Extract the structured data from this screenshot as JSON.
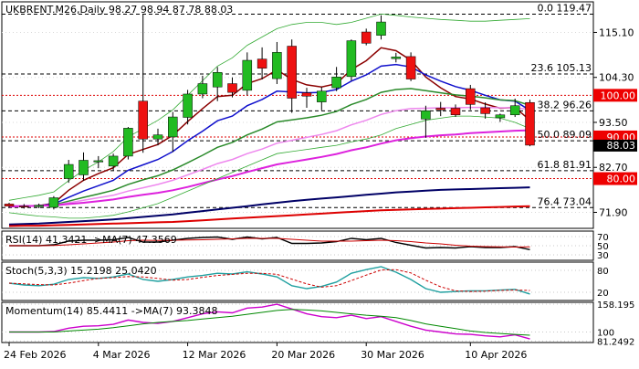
{
  "header": {
    "main": "UKBRENT.M26,Daily  98.27 98.94 87.78 88.03",
    "rsi": "RSI(14) 41.3421  ->MA(7) 47.3569",
    "stoch": "Stoch(5,3,3) 15.2198 25.0420",
    "momentum": "Momentum(14) 85.4411  ->MA(7) 93.3848"
  },
  "colors": {
    "bull": "#22bb22",
    "bear": "#ee1111",
    "ema5": "#8b0000",
    "ema10": "#1010cc",
    "ema20": "#2a8a2a",
    "ema30": "#ee88ee",
    "ema55": "#dd22dd",
    "ema100": "#000066",
    "ema200": "#dd0000",
    "bollinger": "#33aa33",
    "resistance_line": "#dd0000",
    "fib_line": "#000000",
    "price_tag": "#ee0000",
    "current_tag": "#000000"
  },
  "chart_data": [
    {
      "type": "candlestick",
      "symbol": "UKBRENT.M26",
      "timeframe": "Daily",
      "ohlc_current": {
        "open": 98.27,
        "high": 98.94,
        "low": 87.78,
        "close": 88.03
      },
      "x_tick_labels": [
        "24 Feb 2026",
        "4 Mar 2026",
        "12 Mar 2026",
        "20 Mar 2026",
        "30 Mar 2026",
        "10 Apr 2026"
      ],
      "x_tick_index": [
        0,
        6,
        12,
        18,
        24,
        31
      ],
      "ylim": [
        68.5,
        122
      ],
      "y_tick_labels": [
        "115.10",
        "104.30",
        "93.50",
        "82.70",
        "71.90"
      ],
      "y_ticks": [
        115.1,
        104.3,
        93.5,
        82.7,
        71.9
      ],
      "candles": [
        {
          "o": 73.9,
          "h": 74.2,
          "l": 73.0,
          "c": 73.4
        },
        {
          "o": 73.4,
          "h": 73.9,
          "l": 72.8,
          "c": 73.3
        },
        {
          "o": 73.3,
          "h": 74.0,
          "l": 72.9,
          "c": 73.6
        },
        {
          "o": 73.1,
          "h": 75.8,
          "l": 72.6,
          "c": 75.4
        },
        {
          "o": 80.0,
          "h": 84.5,
          "l": 79.0,
          "c": 83.4
        },
        {
          "o": 80.9,
          "h": 86.3,
          "l": 79.5,
          "c": 84.4
        },
        {
          "o": 84.0,
          "h": 85.4,
          "l": 82.5,
          "c": 84.3
        },
        {
          "o": 83.0,
          "h": 86.0,
          "l": 82.0,
          "c": 85.4
        },
        {
          "o": 85.4,
          "h": 92.4,
          "l": 84.6,
          "c": 92.1
        },
        {
          "o": 98.6,
          "h": 119.5,
          "l": 86.2,
          "c": 89.5
        },
        {
          "o": 89.5,
          "h": 92.0,
          "l": 88.0,
          "c": 90.5
        },
        {
          "o": 90.0,
          "h": 96.0,
          "l": 86.4,
          "c": 94.8
        },
        {
          "o": 94.7,
          "h": 101.3,
          "l": 93.0,
          "c": 100.3
        },
        {
          "o": 100.3,
          "h": 104.7,
          "l": 99.3,
          "c": 102.8
        },
        {
          "o": 102.0,
          "h": 106.8,
          "l": 98.6,
          "c": 105.5
        },
        {
          "o": 102.8,
          "h": 104.3,
          "l": 99.5,
          "c": 100.7
        },
        {
          "o": 101.2,
          "h": 110.3,
          "l": 100.0,
          "c": 108.4
        },
        {
          "o": 108.7,
          "h": 111.5,
          "l": 103.8,
          "c": 106.5
        },
        {
          "o": 104.0,
          "h": 112.8,
          "l": 102.7,
          "c": 110.3
        },
        {
          "o": 111.8,
          "h": 113.4,
          "l": 95.8,
          "c": 99.3
        },
        {
          "o": 100.6,
          "h": 101.8,
          "l": 97.0,
          "c": 99.8
        },
        {
          "o": 98.4,
          "h": 102.0,
          "l": 96.4,
          "c": 101.0
        },
        {
          "o": 101.8,
          "h": 106.8,
          "l": 101.0,
          "c": 104.4
        },
        {
          "o": 104.5,
          "h": 113.4,
          "l": 103.5,
          "c": 113.1
        },
        {
          "o": 115.2,
          "h": 116.0,
          "l": 112.0,
          "c": 112.5
        },
        {
          "o": 114.4,
          "h": 119.2,
          "l": 113.4,
          "c": 117.6
        },
        {
          "o": 108.8,
          "h": 110.2,
          "l": 107.9,
          "c": 109.2
        },
        {
          "o": 109.3,
          "h": 110.3,
          "l": 103.4,
          "c": 103.9
        },
        {
          "o": 94.3,
          "h": 97.5,
          "l": 89.8,
          "c": 96.3
        },
        {
          "o": 96.9,
          "h": 98.4,
          "l": 95.0,
          "c": 96.5
        },
        {
          "o": 96.9,
          "h": 97.8,
          "l": 94.8,
          "c": 95.3
        },
        {
          "o": 101.6,
          "h": 102.5,
          "l": 96.5,
          "c": 97.8
        },
        {
          "o": 97.0,
          "h": 98.3,
          "l": 94.4,
          "c": 95.6
        },
        {
          "o": 94.6,
          "h": 95.6,
          "l": 93.6,
          "c": 95.3
        },
        {
          "o": 95.3,
          "h": 99.2,
          "l": 94.8,
          "c": 97.5
        },
        {
          "o": 98.27,
          "h": 98.94,
          "l": 87.78,
          "c": 88.03
        }
      ],
      "moving_averages": [
        {
          "id": "ema5",
          "values": [
            73.5,
            73.5,
            73.5,
            74.1,
            77.2,
            79.6,
            81.2,
            82.6,
            85.8,
            87.0,
            88.2,
            90.4,
            93.7,
            96.8,
            99.7,
            100.0,
            102.8,
            104.0,
            106.1,
            103.8,
            102.5,
            102.0,
            102.8,
            106.2,
            108.3,
            111.4,
            110.7,
            108.4,
            104.4,
            101.8,
            99.7,
            99.1,
            97.9,
            96.9,
            97.1,
            94.0
          ]
        },
        {
          "id": "ema10",
          "values": [
            73.5,
            73.5,
            73.5,
            73.9,
            75.5,
            77.0,
            78.3,
            79.6,
            82.0,
            83.3,
            84.6,
            86.5,
            89.1,
            91.4,
            93.9,
            95.0,
            97.5,
            99.0,
            101.0,
            100.8,
            100.6,
            100.7,
            101.4,
            103.4,
            104.9,
            107.0,
            107.4,
            106.8,
            104.9,
            103.4,
            102.1,
            101.2,
            100.0,
            98.9,
            98.6,
            96.4
          ]
        },
        {
          "id": "ema20",
          "values": [
            73.5,
            73.5,
            73.5,
            73.7,
            74.6,
            75.5,
            76.3,
            77.2,
            78.6,
            79.7,
            80.7,
            82.1,
            83.8,
            85.6,
            87.5,
            88.7,
            90.5,
            91.9,
            93.6,
            94.1,
            94.6,
            95.2,
            96.1,
            97.8,
            99.0,
            100.7,
            101.4,
            101.6,
            101.1,
            100.6,
            100.1,
            99.8,
            99.4,
            98.9,
            98.7,
            97.6
          ]
        },
        {
          "id": "ema30",
          "values": [
            73.5,
            73.5,
            73.5,
            73.6,
            74.2,
            74.8,
            75.4,
            76.0,
            77.0,
            77.8,
            78.6,
            79.6,
            80.9,
            82.2,
            83.6,
            84.6,
            86.0,
            87.1,
            88.5,
            89.2,
            89.9,
            90.6,
            91.5,
            92.9,
            94.0,
            95.4,
            96.3,
            96.8,
            96.9,
            97.0,
            97.0,
            97.1,
            97.1,
            97.0,
            97.0,
            96.6
          ]
        },
        {
          "id": "ema55",
          "values": [
            73.3,
            73.4,
            73.5,
            73.6,
            73.9,
            74.2,
            74.6,
            75.0,
            75.6,
            76.1,
            76.6,
            77.2,
            78.0,
            78.9,
            79.8,
            80.6,
            81.6,
            82.5,
            83.4,
            84.0,
            84.6,
            85.2,
            85.9,
            86.8,
            87.5,
            88.4,
            89.2,
            89.7,
            90.1,
            90.4,
            90.6,
            90.9,
            91.1,
            91.3,
            91.5,
            91.6
          ]
        },
        {
          "id": "ema100",
          "values": [
            69.0,
            69.1,
            69.2,
            69.4,
            69.6,
            69.8,
            70.0,
            70.2,
            70.5,
            70.8,
            71.1,
            71.4,
            71.8,
            72.2,
            72.6,
            73.0,
            73.4,
            73.8,
            74.2,
            74.6,
            74.9,
            75.2,
            75.5,
            75.8,
            76.1,
            76.4,
            76.7,
            76.9,
            77.1,
            77.3,
            77.4,
            77.5,
            77.6,
            77.7,
            77.8,
            77.9
          ]
        },
        {
          "id": "ema200",
          "values": [
            68.6,
            68.7,
            68.7,
            68.8,
            68.9,
            69.0,
            69.1,
            69.2,
            69.3,
            69.4,
            69.5,
            69.6,
            69.8,
            70.0,
            70.2,
            70.4,
            70.6,
            70.8,
            71.0,
            71.2,
            71.4,
            71.6,
            71.8,
            72.0,
            72.2,
            72.4,
            72.5,
            72.6,
            72.7,
            72.8,
            72.9,
            73.0,
            73.1,
            73.2,
            73.3,
            73.4
          ]
        },
        {
          "id": "bollinger_upper",
          "values": [
            74.8,
            75.4,
            76.0,
            76.8,
            79.5,
            82.0,
            84.0,
            86.5,
            90.0,
            92.0,
            94.0,
            96.5,
            100.0,
            103.5,
            107.0,
            109.0,
            112.0,
            114.0,
            116.0,
            117.0,
            117.5,
            117.5,
            117.0,
            117.5,
            118.5,
            119.5,
            119.2,
            118.8,
            118.5,
            118.2,
            118.0,
            117.8,
            117.8,
            118.0,
            118.2,
            118.4
          ]
        },
        {
          "id": "bollinger_lower",
          "values": [
            71.8,
            71.4,
            71.0,
            70.8,
            70.5,
            70.5,
            70.8,
            71.2,
            72.0,
            73.0,
            74.0,
            75.5,
            77.0,
            78.5,
            80.0,
            81.5,
            83.0,
            84.5,
            86.0,
            86.5,
            87.0,
            87.5,
            88.0,
            88.8,
            89.5,
            90.5,
            92.0,
            93.0,
            94.0,
            94.5,
            95.0,
            95.0,
            94.8,
            94.5,
            93.5,
            92.0
          ]
        }
      ],
      "horizontal_levels": [
        {
          "label": "0.0 119.47",
          "value": 119.47,
          "style": "fib"
        },
        {
          "label": "23.6 105.13",
          "value": 105.13,
          "style": "fib"
        },
        {
          "label": "38.2 96.26",
          "value": 96.26,
          "style": "fib"
        },
        {
          "label": "50.0 89.09",
          "value": 89.09,
          "style": "fib"
        },
        {
          "label": "61.8 81.91",
          "value": 81.91,
          "style": "fib"
        },
        {
          "label": "76.4 73.04",
          "value": 73.04,
          "style": "fib"
        },
        {
          "label": "100.00",
          "value": 100.0,
          "style": "resistance"
        },
        {
          "label": "90.00",
          "value": 90.0,
          "style": "resistance"
        },
        {
          "label": "80.00",
          "value": 80.0,
          "style": "resistance"
        }
      ],
      "current_price_label": "88.03"
    },
    {
      "type": "line",
      "title": "RSI(14) 41.3421  ->MA(7) 47.3569",
      "ylim": [
        20,
        80
      ],
      "y_tick_labels": [
        "70",
        "50",
        "30"
      ],
      "y_ticks": [
        70,
        50,
        30
      ],
      "series": [
        {
          "name": "RSI(14)",
          "color": "#000000",
          "values": [
            50,
            50,
            50,
            52,
            60,
            62,
            62,
            63,
            68,
            58,
            58,
            62,
            66,
            68,
            69,
            64,
            69,
            65,
            68,
            55,
            55,
            56,
            59,
            66,
            63,
            66,
            57,
            51,
            45,
            46,
            45,
            48,
            46,
            46,
            48,
            41.3421
          ]
        },
        {
          "name": "MA(7)",
          "color": "#cc0000",
          "values": [
            50,
            50,
            50,
            50.5,
            52,
            54,
            56,
            58,
            61,
            62,
            61.5,
            62,
            62.5,
            63,
            64,
            65,
            66,
            66,
            66,
            64,
            62,
            60,
            60,
            60,
            61,
            62,
            61,
            59,
            56,
            54,
            51,
            49,
            48,
            47.5,
            47,
            47.3569
          ]
        }
      ]
    },
    {
      "type": "line",
      "title": "Stoch(5,3,3) 15.2198 25.0420",
      "ylim": [
        0,
        100
      ],
      "y_tick_labels": [
        "80",
        "20"
      ],
      "y_ticks": [
        80,
        20
      ],
      "series": [
        {
          "name": "%K",
          "color": "#20a0a0",
          "values": [
            45,
            40,
            38,
            42,
            55,
            60,
            58,
            62,
            70,
            55,
            50,
            55,
            62,
            66,
            72,
            70,
            76,
            70,
            62,
            38,
            30,
            36,
            48,
            72,
            82,
            90,
            75,
            55,
            30,
            20,
            22,
            24,
            24,
            26,
            28,
            15.2198
          ]
        },
        {
          "name": "%D",
          "color": "#cc0000",
          "values": [
            45,
            43,
            41,
            40,
            45,
            52,
            58,
            60,
            63,
            62,
            58,
            53,
            55,
            61,
            66,
            69,
            72,
            72,
            69,
            56,
            43,
            34,
            38,
            52,
            67,
            81,
            82,
            73,
            53,
            35,
            24,
            22,
            23,
            25,
            26,
            25.042
          ]
        }
      ]
    },
    {
      "type": "line",
      "title": "Momentum(14) 85.4411  ->MA(7) 93.3848",
      "ylim": [
        80,
        160
      ],
      "y_tick_labels": [
        "158.195",
        "100",
        "81.2492"
      ],
      "y_ticks": [
        158.195,
        100,
        81.2492
      ],
      "series": [
        {
          "name": "Momentum(14)",
          "color": "#cc00cc",
          "values": [
            100,
            100,
            100,
            101,
            108,
            112,
            113,
            116,
            125,
            120,
            118,
            122,
            130,
            138,
            142,
            140,
            150,
            152,
            158,
            148,
            138,
            132,
            130,
            135,
            128,
            132,
            122,
            112,
            104,
            100,
            96,
            95,
            92,
            90,
            94,
            85.4411
          ]
        },
        {
          "name": "MA(7)",
          "color": "#008800",
          "values": [
            100,
            100,
            100,
            100,
            102,
            104,
            106,
            109,
            113,
            117,
            120,
            122,
            124,
            127,
            130,
            133,
            137,
            141,
            145,
            147,
            146,
            144,
            141,
            138,
            135,
            133,
            130,
            124,
            117,
            112,
            107,
            102,
            99,
            97,
            95,
            93.3848
          ]
        }
      ]
    }
  ]
}
